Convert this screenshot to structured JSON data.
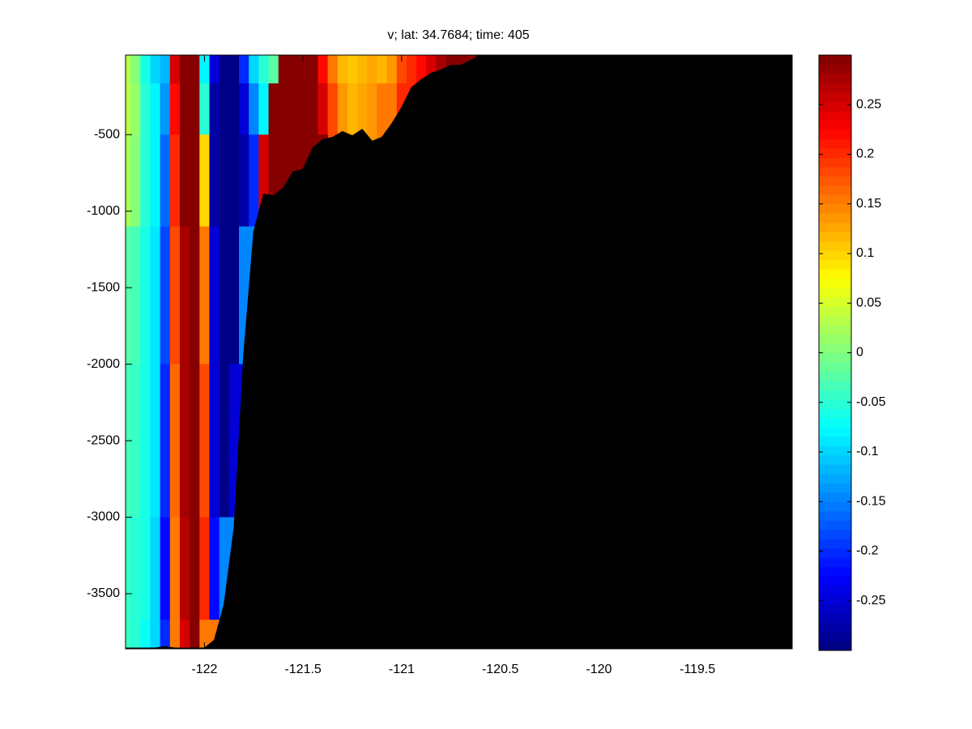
{
  "chart_data": {
    "type": "contourf",
    "title": "v; lat: 34.7684; time: 405",
    "colormap": "jet",
    "levels": 64,
    "background": "#000000",
    "x": [
      -122.4,
      -122.35,
      -122.3,
      -122.25,
      -122.2,
      -122.15,
      -122.1,
      -122.05,
      -122.0,
      -121.95,
      -121.9,
      -121.85,
      -121.8,
      -121.75,
      -121.7,
      -121.65,
      -121.6,
      -121.55,
      -121.5,
      -121.45,
      -121.4,
      -121.35,
      -121.3,
      -121.25,
      -121.2,
      -121.15,
      -121.1,
      -121.05,
      -121.0,
      -120.95,
      -120.9,
      -120.85,
      -120.8,
      -120.75,
      -120.7,
      -120.65,
      -120.6
    ],
    "y": [
      -30,
      -300,
      -700,
      -1500,
      -2500,
      -3500,
      -3840
    ],
    "z": [
      [
        0.03,
        0.0,
        -0.06,
        -0.1,
        -0.12,
        0.25,
        0.3,
        0.3,
        -0.08,
        -0.25,
        -0.3,
        -0.3,
        -0.2,
        -0.1,
        -0.05,
        -0.02,
        0.3,
        0.3,
        0.3,
        0.3,
        0.22,
        0.15,
        0.12,
        0.11,
        0.12,
        0.13,
        0.12,
        0.14,
        0.18,
        0.2,
        0.22,
        0.25,
        0.28,
        0.3,
        0.3,
        null,
        null
      ],
      [
        0.03,
        0.01,
        -0.05,
        -0.08,
        -0.14,
        0.22,
        0.3,
        0.3,
        -0.05,
        -0.28,
        -0.3,
        -0.3,
        -0.25,
        -0.15,
        -0.08,
        0.3,
        0.3,
        0.3,
        0.3,
        0.3,
        0.25,
        0.18,
        0.14,
        0.12,
        0.13,
        0.14,
        0.15,
        0.15,
        0.2,
        null,
        null,
        null,
        null,
        null,
        null,
        null,
        null
      ],
      [
        0.02,
        0.0,
        -0.05,
        -0.08,
        -0.16,
        0.2,
        0.3,
        0.3,
        0.1,
        -0.28,
        -0.3,
        -0.3,
        -0.28,
        -0.2,
        0.25,
        0.3,
        0.3,
        0.3,
        0.3,
        0.3,
        null,
        null,
        null,
        null,
        null,
        null,
        null,
        null,
        null,
        null,
        null,
        null,
        null,
        null,
        null,
        null,
        null
      ],
      [
        -0.02,
        -0.03,
        -0.06,
        -0.09,
        -0.18,
        0.18,
        0.28,
        0.3,
        0.15,
        -0.25,
        -0.3,
        -0.3,
        -0.15,
        null,
        null,
        null,
        null,
        null,
        null,
        null,
        null,
        null,
        null,
        null,
        null,
        null,
        null,
        null,
        null,
        null,
        null,
        null,
        null,
        null,
        null,
        null,
        null
      ],
      [
        -0.03,
        -0.04,
        -0.06,
        -0.09,
        -0.2,
        0.16,
        0.28,
        0.3,
        0.18,
        -0.25,
        -0.3,
        -0.25,
        null,
        null,
        null,
        null,
        null,
        null,
        null,
        null,
        null,
        null,
        null,
        null,
        null,
        null,
        null,
        null,
        null,
        null,
        null,
        null,
        null,
        null,
        null,
        null,
        null
      ],
      [
        -0.04,
        -0.05,
        -0.06,
        -0.1,
        -0.22,
        0.15,
        0.27,
        0.3,
        0.2,
        -0.22,
        -0.15,
        null,
        null,
        null,
        null,
        null,
        null,
        null,
        null,
        null,
        null,
        null,
        null,
        null,
        null,
        null,
        null,
        null,
        null,
        null,
        null,
        null,
        null,
        null,
        null,
        null,
        null
      ],
      [
        -0.04,
        -0.05,
        -0.07,
        -0.1,
        -0.2,
        0.15,
        0.25,
        0.3,
        0.15,
        null,
        null,
        null,
        null,
        null,
        null,
        null,
        null,
        null,
        null,
        null,
        null,
        null,
        null,
        null,
        null,
        null,
        null,
        null,
        null,
        null,
        null,
        null,
        null,
        null,
        null,
        null,
        null
      ]
    ],
    "bottom": [
      -3855,
      -3855,
      -3855,
      -3855,
      -3845,
      -3855,
      -3855,
      -3855,
      -3855,
      -3803,
      -3568,
      -3071,
      -1920,
      -1134,
      -888,
      -899,
      -847,
      -742,
      -726,
      -585,
      -533,
      -517,
      -480,
      -507,
      -465,
      -543,
      -517,
      -428,
      -323,
      -192,
      -140,
      -98,
      -77,
      -46,
      -46,
      -15,
      15
    ],
    "xlim": [
      -122.4,
      -119.02
    ],
    "ylim": [
      -3860,
      20
    ],
    "xticks": [
      -122,
      -121.5,
      -121,
      -120.5,
      -120,
      -119.5
    ],
    "yticks": [
      -3500,
      -3000,
      -2500,
      -2000,
      -1500,
      -1000,
      -500
    ],
    "clim": [
      -0.3,
      0.3
    ],
    "cticks": [
      -0.25,
      -0.2,
      -0.15,
      -0.1,
      -0.05,
      0,
      0.05,
      0.1,
      0.15,
      0.2,
      0.25
    ]
  }
}
